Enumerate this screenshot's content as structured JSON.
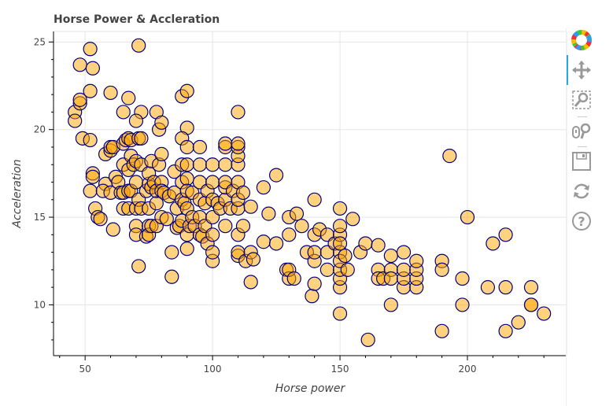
{
  "chart_data": {
    "type": "scatter",
    "title": "Horse Power & Accleration",
    "xlabel": "Horse power",
    "ylabel": "Acceleration",
    "xlim": [
      37.6,
      238.9
    ],
    "ylim": [
      7.1,
      25.6
    ],
    "x_ticks": [
      50,
      100,
      150,
      200
    ],
    "y_ticks": [
      10,
      15,
      20,
      25
    ],
    "grid": true,
    "marker": {
      "fill": "#FFA500",
      "fill_alpha": 0.5,
      "line": "#000080"
    },
    "points": [
      [
        46,
        21
      ],
      [
        46,
        20.5
      ],
      [
        48,
        23.7
      ],
      [
        48,
        21.5
      ],
      [
        48,
        21.7
      ],
      [
        49,
        19.5
      ],
      [
        52,
        24.6
      ],
      [
        52,
        22.2
      ],
      [
        53,
        23.5
      ],
      [
        52,
        19.4
      ],
      [
        52,
        16.5
      ],
      [
        53,
        17.5
      ],
      [
        53,
        17.3
      ],
      [
        58,
        16.9
      ],
      [
        60,
        22.1
      ],
      [
        65,
        21
      ],
      [
        67,
        21.8
      ],
      [
        71,
        24.8
      ],
      [
        72,
        21
      ],
      [
        70,
        20.5
      ],
      [
        78,
        21
      ],
      [
        79,
        20
      ],
      [
        80,
        20.4
      ],
      [
        88,
        21.9
      ],
      [
        90,
        22.2
      ],
      [
        90,
        20.1
      ],
      [
        110,
        21
      ],
      [
        54,
        15.5
      ],
      [
        55,
        15
      ],
      [
        56,
        14.9
      ],
      [
        57,
        16.5
      ],
      [
        58,
        18.6
      ],
      [
        60,
        16.4
      ],
      [
        60,
        18.8
      ],
      [
        61,
        14.3
      ],
      [
        60,
        19
      ],
      [
        61,
        19
      ],
      [
        62,
        17.3
      ],
      [
        63,
        17
      ],
      [
        64,
        16.4
      ],
      [
        65,
        19.2
      ],
      [
        65,
        16.4
      ],
      [
        65,
        15.5
      ],
      [
        65,
        18
      ],
      [
        66,
        19.4
      ],
      [
        67,
        15.5
      ],
      [
        67,
        16.5
      ],
      [
        67,
        17.7
      ],
      [
        67,
        19.5
      ],
      [
        68,
        16.5
      ],
      [
        68,
        18.5
      ],
      [
        68,
        19.4
      ],
      [
        69,
        18
      ],
      [
        70,
        14.5
      ],
      [
        70,
        17
      ],
      [
        70,
        18.2
      ],
      [
        70,
        15.5
      ],
      [
        70,
        14
      ],
      [
        71,
        12.2
      ],
      [
        71,
        16
      ],
      [
        71,
        19.5
      ],
      [
        72,
        15.5
      ],
      [
        72,
        19.5
      ],
      [
        72,
        18
      ],
      [
        74,
        13.9
      ],
      [
        74,
        16.5
      ],
      [
        75,
        14.5
      ],
      [
        75,
        16.9
      ],
      [
        75,
        17.5
      ],
      [
        75,
        15.5
      ],
      [
        75,
        14
      ],
      [
        76,
        14.5
      ],
      [
        76,
        16.7
      ],
      [
        76,
        18.2
      ],
      [
        77,
        17
      ],
      [
        78,
        14.5
      ],
      [
        78,
        15.8
      ],
      [
        78,
        16.5
      ],
      [
        79,
        18
      ],
      [
        80,
        15
      ],
      [
        80,
        17
      ],
      [
        80,
        16.5
      ],
      [
        80,
        18.6
      ],
      [
        81,
        16.4
      ],
      [
        82,
        14.9
      ],
      [
        83,
        16.2
      ],
      [
        84,
        11.6
      ],
      [
        84,
        13
      ],
      [
        85,
        16.4
      ],
      [
        85,
        17.6
      ],
      [
        86,
        14.4
      ],
      [
        86,
        15.5
      ],
      [
        87,
        14.5
      ],
      [
        88,
        14.8
      ],
      [
        88,
        16
      ],
      [
        88,
        17
      ],
      [
        88,
        18
      ],
      [
        88,
        19.5
      ],
      [
        89,
        15.8
      ],
      [
        90,
        13.2
      ],
      [
        90,
        14
      ],
      [
        90,
        15.5
      ],
      [
        90,
        17.2
      ],
      [
        90,
        18
      ],
      [
        90,
        19
      ],
      [
        90,
        16.5
      ],
      [
        91,
        14.5
      ],
      [
        92,
        15
      ],
      [
        92,
        16.4
      ],
      [
        93,
        14.5
      ],
      [
        95,
        14
      ],
      [
        95,
        15
      ],
      [
        95,
        16
      ],
      [
        95,
        17
      ],
      [
        95,
        18
      ],
      [
        95,
        19
      ],
      [
        96,
        13.9
      ],
      [
        97,
        14.5
      ],
      [
        97,
        15.8
      ],
      [
        98,
        13.5
      ],
      [
        98,
        16.5
      ],
      [
        100,
        12.5
      ],
      [
        100,
        14
      ],
      [
        100,
        15
      ],
      [
        100,
        16
      ],
      [
        100,
        17
      ],
      [
        100,
        18
      ],
      [
        100,
        13
      ],
      [
        102,
        15.8
      ],
      [
        103,
        15.5
      ],
      [
        105,
        14.5
      ],
      [
        105,
        16
      ],
      [
        105,
        16.7
      ],
      [
        105,
        17
      ],
      [
        105,
        18
      ],
      [
        105,
        19
      ],
      [
        105,
        19.2
      ],
      [
        107,
        15.5
      ],
      [
        108,
        16.5
      ],
      [
        110,
        12.8
      ],
      [
        110,
        13
      ],
      [
        110,
        14
      ],
      [
        110,
        15.5
      ],
      [
        110,
        16
      ],
      [
        110,
        17
      ],
      [
        110,
        18
      ],
      [
        110,
        18.5
      ],
      [
        110,
        19
      ],
      [
        110,
        19.2
      ],
      [
        112,
        14.5
      ],
      [
        112,
        16.4
      ],
      [
        113,
        12.5
      ],
      [
        115,
        11.3
      ],
      [
        115,
        13
      ],
      [
        115,
        15.6
      ],
      [
        116,
        12.6
      ],
      [
        120,
        13.6
      ],
      [
        120,
        16.7
      ],
      [
        122,
        15.2
      ],
      [
        125,
        13.5
      ],
      [
        125,
        17.4
      ],
      [
        129,
        12
      ],
      [
        130,
        11.5
      ],
      [
        130,
        12
      ],
      [
        130,
        14
      ],
      [
        130,
        15
      ],
      [
        132,
        11.5
      ],
      [
        133,
        15.2
      ],
      [
        135,
        14.5
      ],
      [
        137,
        13
      ],
      [
        139,
        10.5
      ],
      [
        140,
        11.2
      ],
      [
        140,
        12.5
      ],
      [
        140,
        13
      ],
      [
        140,
        14
      ],
      [
        140,
        16
      ],
      [
        142,
        14.3
      ],
      [
        145,
        12
      ],
      [
        145,
        13
      ],
      [
        145,
        14
      ],
      [
        148,
        13.5
      ],
      [
        150,
        9.5
      ],
      [
        150,
        11
      ],
      [
        150,
        11.5
      ],
      [
        150,
        12
      ],
      [
        150,
        13
      ],
      [
        150,
        14
      ],
      [
        150,
        14.5
      ],
      [
        150,
        15.5
      ],
      [
        150,
        12.5
      ],
      [
        150,
        13.5
      ],
      [
        152,
        12.8
      ],
      [
        153,
        12
      ],
      [
        155,
        14.9
      ],
      [
        158,
        13
      ],
      [
        160,
        13.5
      ],
      [
        161,
        8
      ],
      [
        165,
        12
      ],
      [
        165,
        11.5
      ],
      [
        165,
        13.4
      ],
      [
        167,
        11.5
      ],
      [
        170,
        10
      ],
      [
        170,
        12
      ],
      [
        170,
        11.5
      ],
      [
        170,
        12.8
      ],
      [
        175,
        11
      ],
      [
        175,
        11.5
      ],
      [
        175,
        12
      ],
      [
        175,
        13
      ],
      [
        180,
        11
      ],
      [
        180,
        11.5
      ],
      [
        180,
        12
      ],
      [
        180,
        12.5
      ],
      [
        190,
        12.5
      ],
      [
        190,
        12
      ],
      [
        190,
        8.5
      ],
      [
        193,
        18.5
      ],
      [
        198,
        11.5
      ],
      [
        198,
        10
      ],
      [
        200,
        15
      ],
      [
        208,
        11
      ],
      [
        210,
        13.5
      ],
      [
        215,
        14
      ],
      [
        215,
        11
      ],
      [
        215,
        8.5
      ],
      [
        220,
        9
      ],
      [
        225,
        10
      ],
      [
        225,
        11
      ],
      [
        225,
        10
      ],
      [
        230,
        9.5
      ]
    ]
  },
  "toolbar": {
    "tools": [
      "bokeh-logo-icon",
      "pan-icon",
      "box-zoom-icon",
      "wheel-zoom-icon",
      "save-icon",
      "reset-icon",
      "help-icon"
    ],
    "active": "pan-icon",
    "accent": "#26AAE1"
  }
}
